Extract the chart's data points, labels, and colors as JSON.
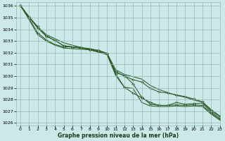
{
  "title": "Graphe pression niveau de la mer (hPa)",
  "background_color": "#cce8e8",
  "grid_color": "#99bbbb",
  "line_color": "#2d5a27",
  "xlim": [
    -0.5,
    23
  ],
  "ylim": [
    1025.8,
    1036.3
  ],
  "yticks": [
    1026,
    1027,
    1028,
    1029,
    1030,
    1031,
    1032,
    1033,
    1034,
    1035,
    1036
  ],
  "xticks": [
    0,
    1,
    2,
    3,
    4,
    5,
    6,
    7,
    8,
    9,
    10,
    11,
    12,
    13,
    14,
    15,
    16,
    17,
    18,
    19,
    20,
    21,
    22,
    23
  ],
  "lines": [
    {
      "x": [
        0,
        1,
        2,
        3,
        4,
        5,
        6,
        7,
        8,
        9,
        10,
        11,
        12,
        13,
        14,
        15,
        16,
        17,
        18,
        19,
        20,
        21,
        22,
        23
      ],
      "y": [
        1036.05,
        1035.1,
        1034.2,
        1033.55,
        1033.2,
        1032.85,
        1032.65,
        1032.45,
        1032.35,
        1032.2,
        1031.95,
        1030.55,
        1030.15,
        1029.95,
        1029.75,
        1029.2,
        1028.85,
        1028.6,
        1028.35,
        1028.2,
        1027.95,
        1027.8,
        1027.15,
        1026.6
      ],
      "marker": false
    },
    {
      "x": [
        0,
        1,
        2,
        3,
        4,
        5,
        6,
        7,
        8,
        9,
        10,
        11,
        12,
        13,
        14,
        15,
        16,
        17,
        18,
        19,
        20,
        21,
        22,
        23
      ],
      "y": [
        1036.05,
        1035.05,
        1034.25,
        1033.45,
        1033.05,
        1032.6,
        1032.5,
        1032.4,
        1032.3,
        1032.1,
        1031.9,
        1030.4,
        1030.0,
        1029.7,
        1029.5,
        1028.95,
        1028.65,
        1028.55,
        1028.4,
        1028.25,
        1028.05,
        1027.8,
        1027.05,
        1026.55
      ],
      "marker": true
    },
    {
      "x": [
        0,
        1,
        2,
        3,
        4,
        5,
        6,
        7,
        8,
        9,
        10,
        11,
        12,
        13,
        14,
        15,
        16,
        17,
        18,
        19,
        20,
        21,
        22,
        23
      ],
      "y": [
        1036.05,
        1034.95,
        1033.7,
        1033.1,
        1032.7,
        1032.5,
        1032.5,
        1032.4,
        1032.3,
        1032.2,
        1031.95,
        1030.3,
        1030.05,
        1029.35,
        1028.2,
        1027.6,
        1027.5,
        1027.5,
        1027.55,
        1027.5,
        1027.55,
        1027.5,
        1026.85,
        1026.3
      ],
      "marker": true
    },
    {
      "x": [
        0,
        1,
        2,
        3,
        4,
        5,
        6,
        7,
        8,
        9,
        10,
        11,
        12,
        13,
        14,
        15,
        16,
        17,
        18,
        19,
        20,
        21,
        22,
        23
      ],
      "y": [
        1036.05,
        1034.85,
        1033.55,
        1033.0,
        1032.65,
        1032.4,
        1032.35,
        1032.3,
        1032.25,
        1032.05,
        1031.85,
        1030.05,
        1029.05,
        1028.95,
        1027.75,
        1027.45,
        1027.4,
        1027.4,
        1027.45,
        1027.4,
        1027.45,
        1027.4,
        1026.75,
        1026.25
      ],
      "marker": false
    },
    {
      "x": [
        0,
        1,
        2,
        3,
        4,
        5,
        6,
        7,
        8,
        9,
        10,
        11,
        12,
        13,
        14,
        15,
        16,
        17,
        18,
        19,
        20,
        21,
        22,
        23
      ],
      "y": [
        1036.05,
        1035.05,
        1034.1,
        1033.4,
        1033.05,
        1032.6,
        1032.5,
        1032.45,
        1032.25,
        1032.1,
        1031.9,
        1030.2,
        1029.05,
        1028.55,
        1028.15,
        1027.75,
        1027.5,
        1027.5,
        1027.75,
        1027.6,
        1027.65,
        1027.7,
        1026.95,
        1026.4
      ],
      "marker": true
    }
  ]
}
